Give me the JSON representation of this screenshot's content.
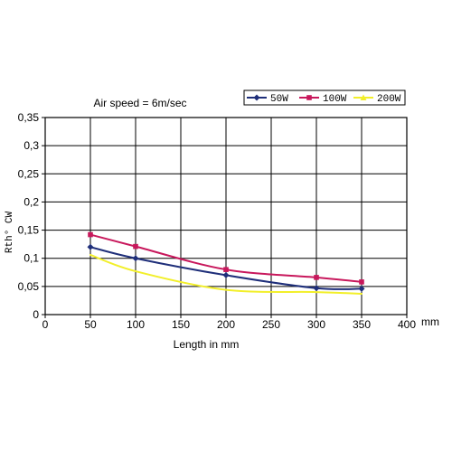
{
  "chart_data": {
    "type": "line",
    "title": "Air speed = 6m/sec",
    "xlabel": "Length in mm",
    "xunit": "mm",
    "ylabel": "Rth° CW",
    "xlim": [
      0,
      400
    ],
    "ylim": [
      0,
      0.35
    ],
    "x_ticks": [
      0,
      50,
      100,
      150,
      200,
      250,
      300,
      350,
      400
    ],
    "x_tick_labels": [
      "0",
      "50",
      "100",
      "150",
      "200",
      "250",
      "300",
      "350",
      "400"
    ],
    "y_ticks": [
      0,
      0.05,
      0.1,
      0.15,
      0.2,
      0.25,
      0.3,
      0.35
    ],
    "y_tick_labels": [
      "0",
      "0,05",
      "0,1",
      "0,15",
      "0,2",
      "0,25",
      "0,3",
      "0,35"
    ],
    "grid": true,
    "legend_position": "top-right",
    "x": [
      50,
      100,
      200,
      300,
      350
    ],
    "series": [
      {
        "name": "50W",
        "color": "#1f2f7a",
        "marker": "diamond",
        "values": [
          0.12,
          0.1,
          0.07,
          0.047,
          0.046
        ]
      },
      {
        "name": "100W",
        "color": "#c8185c",
        "marker": "square",
        "values": [
          0.142,
          0.121,
          0.08,
          0.066,
          0.058
        ]
      },
      {
        "name": "200W",
        "color": "#f2ef2a",
        "marker": "triangle",
        "values": [
          0.106,
          0.077,
          0.044,
          0.04,
          0.037
        ]
      }
    ]
  }
}
